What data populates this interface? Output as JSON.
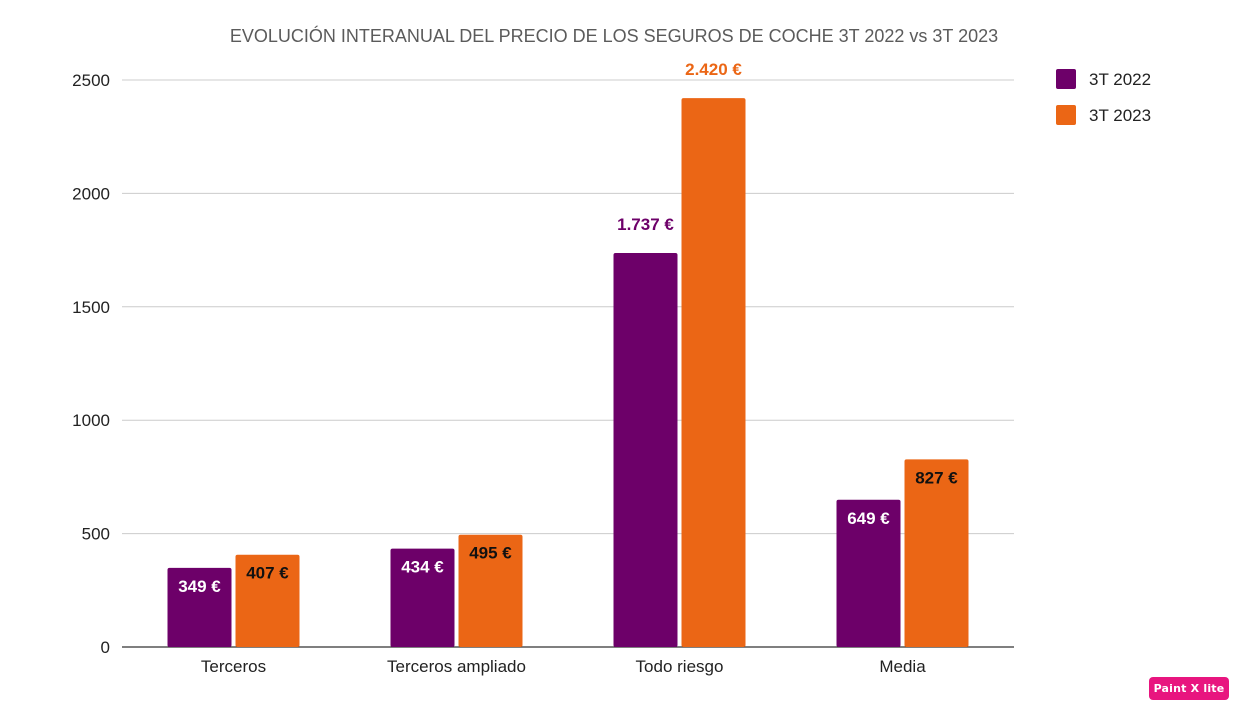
{
  "chart_data": {
    "type": "bar",
    "title": "EVOLUCIÓN INTERANUAL DEL PRECIO DE LOS SEGUROS DE COCHE 3T 2022 vs 3T 2023",
    "categories": [
      "Terceros",
      "Terceros ampliado",
      "Todo riesgo",
      "Media"
    ],
    "series": [
      {
        "name": "3T 2022",
        "color": "#6d0069",
        "values": [
          349,
          434,
          1737,
          649
        ],
        "labels": [
          "349 €",
          "434 €",
          "1.737 €",
          "649 €"
        ]
      },
      {
        "name": "3T 2023",
        "color": "#eb6615",
        "values": [
          407,
          495,
          2420,
          827
        ],
        "labels": [
          "407 €",
          "495 €",
          "2.420 €",
          "827 €"
        ]
      }
    ],
    "ylim": [
      0,
      2500
    ],
    "yticks": [
      "0",
      "500",
      "1000",
      "1500",
      "2000",
      "2500"
    ],
    "grid": true,
    "legend": "right"
  },
  "watermark": "Paint X lite"
}
